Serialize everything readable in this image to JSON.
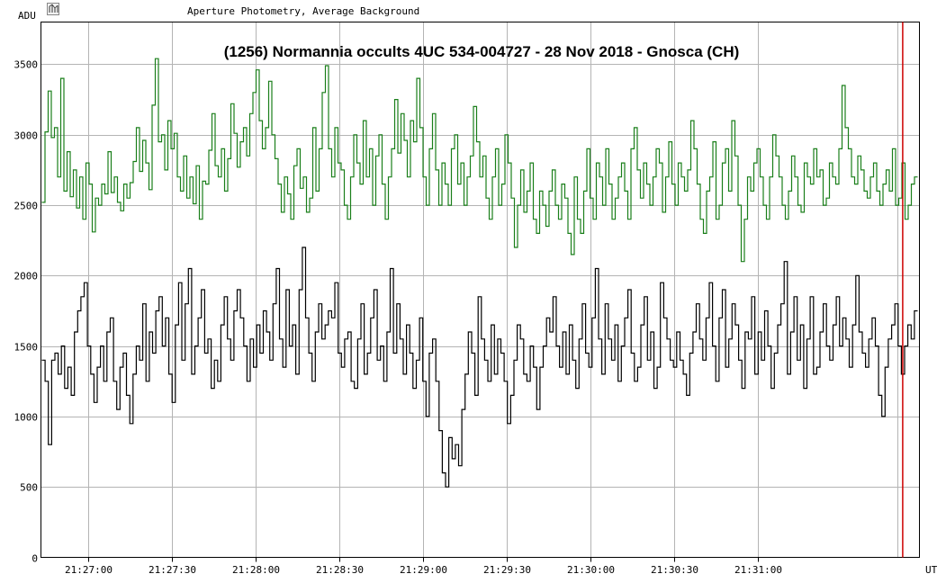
{
  "header": {
    "mode_label": "Aperture Photometry, Average Background",
    "toolbar_icon": "signal-tool-icon"
  },
  "chart_data": {
    "type": "line",
    "title": "(1256) Normannia occults 4UC 534-004727 - 28 Nov 2018 - Gnosca (CH)",
    "ylabel": "ADU",
    "xlabel": "UT",
    "ylim": [
      0,
      3800
    ],
    "yticks": [
      0,
      500,
      1000,
      1500,
      2000,
      2500,
      3000,
      3500
    ],
    "xlim": [
      "21:26:43",
      "21:31:58"
    ],
    "xticks": [
      "21:27:00",
      "21:27:30",
      "21:28:00",
      "21:28:30",
      "21:29:00",
      "21:29:30",
      "21:30:00",
      "21:30:30",
      "21:31:00"
    ],
    "grid": true,
    "marker_time": "21:31:52",
    "marker_color": "#cc0000",
    "series": [
      {
        "color": "#1a7f1a",
        "values": [
          2520,
          3020,
          3310,
          2980,
          3050,
          2700,
          3400,
          2600,
          2880,
          2560,
          2750,
          2480,
          2700,
          2400,
          2800,
          2650,
          2310,
          2550,
          2500,
          2650,
          2580,
          2880,
          2590,
          2700,
          2520,
          2460,
          2650,
          2550,
          2660,
          2810,
          3050,
          2740,
          2960,
          2800,
          2610,
          3210,
          3540,
          2950,
          3000,
          2750,
          3100,
          2900,
          3010,
          2700,
          2600,
          2850,
          2550,
          2700,
          2510,
          2780,
          2400,
          2670,
          2650,
          2890,
          3150,
          2780,
          2700,
          2900,
          2600,
          2830,
          3220,
          3010,
          2770,
          2950,
          3050,
          2850,
          3150,
          3300,
          3460,
          3100,
          2900,
          3050,
          3380,
          3000,
          2830,
          2650,
          2450,
          2700,
          2580,
          2400,
          2780,
          2900,
          2620,
          2700,
          2450,
          2550,
          3050,
          2600,
          2900,
          3300,
          3490,
          2900,
          2700,
          3050,
          2800,
          2750,
          2500,
          2400,
          2700,
          3000,
          2800,
          2650,
          3100,
          2700,
          2900,
          2500,
          2850,
          3000,
          2650,
          2400,
          2700,
          2900,
          3250,
          2870,
          3150,
          2960,
          2700,
          3100,
          2950,
          3400,
          3050,
          2700,
          2500,
          2900,
          3150,
          2750,
          2500,
          2800,
          2650,
          2500,
          2900,
          3000,
          2650,
          2800,
          2500,
          2700,
          2850,
          3200,
          2950,
          2700,
          2850,
          2550,
          2400,
          2700,
          2900,
          2500,
          2650,
          3000,
          2800,
          2550,
          2200,
          2500,
          2750,
          2450,
          2600,
          2800,
          2400,
          2300,
          2600,
          2500,
          2350,
          2600,
          2750,
          2500,
          2400,
          2650,
          2550,
          2300,
          2150,
          2700,
          2400,
          2300,
          2600,
          2900,
          2550,
          2400,
          2800,
          2700,
          2500,
          2900,
          2650,
          2400,
          2550,
          2700,
          2800,
          2600,
          2400,
          2900,
          3050,
          2750,
          2550,
          2800,
          2650,
          2500,
          2700,
          2900,
          2800,
          2450,
          2700,
          2950,
          2650,
          2500,
          2800,
          2700,
          2600,
          2750,
          3100,
          2900,
          2650,
          2400,
          2300,
          2600,
          2700,
          2950,
          2400,
          2500,
          2800,
          2900,
          2600,
          3100,
          2850,
          2500,
          2100,
          2400,
          2700,
          2600,
          2800,
          2900,
          2700,
          2500,
          2400,
          2700,
          3000,
          2850,
          2700,
          2500,
          2400,
          2600,
          2850,
          2700,
          2500,
          2450,
          2800,
          2700,
          2650,
          2900,
          2700,
          2750,
          2500,
          2550,
          2800,
          2700,
          2650,
          2900,
          3350,
          3050,
          2900,
          2700,
          2650,
          2850,
          2750,
          2600,
          2550,
          2700,
          2800,
          2600,
          2500,
          2650,
          2750,
          2600,
          2900,
          2500,
          2550,
          2800,
          2400,
          2500,
          2650,
          2700
        ]
      },
      {
        "color": "#000000",
        "values": [
          1400,
          1250,
          800,
          1400,
          1450,
          1300,
          1500,
          1200,
          1350,
          1150,
          1600,
          1750,
          1850,
          1950,
          1500,
          1300,
          1100,
          1350,
          1500,
          1250,
          1600,
          1700,
          1250,
          1050,
          1350,
          1450,
          1150,
          950,
          1300,
          1500,
          1400,
          1800,
          1250,
          1600,
          1450,
          1750,
          1850,
          1500,
          1700,
          1300,
          1100,
          1650,
          1950,
          1400,
          1800,
          2050,
          1300,
          1500,
          1700,
          1900,
          1450,
          1550,
          1200,
          1400,
          1250,
          1650,
          1850,
          1550,
          1400,
          1750,
          1900,
          1700,
          1500,
          1250,
          1550,
          1350,
          1650,
          1450,
          1750,
          1600,
          1400,
          1800,
          2050,
          1550,
          1350,
          1900,
          1500,
          1650,
          1300,
          1900,
          2200,
          1700,
          1450,
          1250,
          1600,
          1800,
          1550,
          1650,
          1750,
          1700,
          1950,
          1450,
          1350,
          1550,
          1600,
          1250,
          1200,
          1550,
          1800,
          1300,
          1450,
          1700,
          1900,
          1400,
          1500,
          1250,
          1600,
          2050,
          1450,
          1800,
          1550,
          1300,
          1650,
          1450,
          1200,
          1400,
          1700,
          1250,
          1000,
          1450,
          1550,
          1250,
          900,
          600,
          500,
          850,
          700,
          800,
          650,
          1050,
          1300,
          1600,
          1450,
          1150,
          1850,
          1550,
          1400,
          1250,
          1650,
          1300,
          1550,
          1450,
          1250,
          950,
          1150,
          1400,
          1650,
          1550,
          1300,
          1250,
          1500,
          1350,
          1050,
          1350,
          1500,
          1700,
          1600,
          1850,
          1500,
          1350,
          1600,
          1300,
          1650,
          1400,
          1200,
          1550,
          1800,
          1450,
          1350,
          1700,
          2050,
          1550,
          1300,
          1800,
          1550,
          1400,
          1650,
          1250,
          1500,
          1700,
          1900,
          1450,
          1250,
          1350,
          1650,
          1850,
          1400,
          1600,
          1200,
          1350,
          1950,
          1700,
          1550,
          1400,
          1350,
          1600,
          1400,
          1300,
          1150,
          1450,
          1600,
          1800,
          1550,
          1400,
          1700,
          1950,
          1500,
          1250,
          1700,
          1900,
          1350,
          1550,
          1800,
          1650,
          1400,
          1200,
          1600,
          1550,
          1850,
          1300,
          1600,
          1400,
          1750,
          1500,
          1200,
          1450,
          1650,
          1800,
          2100,
          1300,
          1600,
          1850,
          1400,
          1650,
          1200,
          1550,
          1850,
          1300,
          1350,
          1600,
          1800,
          1500,
          1400,
          1650,
          1850,
          1500,
          1700,
          1550,
          1350,
          1650,
          2000,
          1600,
          1450,
          1350,
          1550,
          1700,
          1500,
          1150,
          1000,
          1350,
          1550,
          1650,
          1800,
          1500,
          1300,
          1500,
          1650,
          1550,
          1750
        ]
      }
    ]
  }
}
